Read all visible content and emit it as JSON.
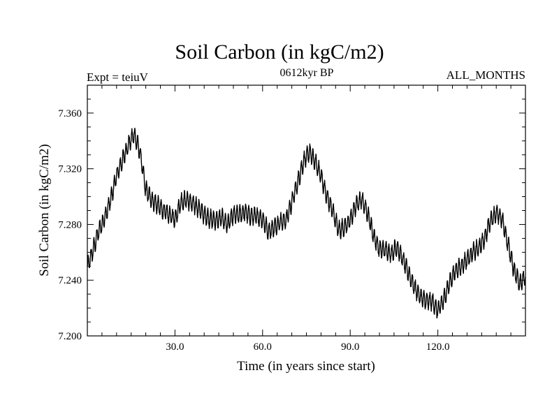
{
  "header": {
    "title": "Soil Carbon (in kgC/m2)",
    "subtitle": "0612kyr BP",
    "left_label": "Expt = teiuV",
    "right_label": "ALL_MONTHS"
  },
  "chart_data": {
    "type": "line",
    "title": "Soil Carbon (in kgC/m2)",
    "xlabel": "Time (in years since start)",
    "ylabel": "Soil Carbon (in kgC/m2)",
    "xlim": [
      0,
      150
    ],
    "ylim": [
      7.2,
      7.38
    ],
    "x_ticks": [
      30,
      60,
      90,
      120
    ],
    "x_tick_labels": [
      "30.0",
      "60.0",
      "90.0",
      "120.0"
    ],
    "y_ticks": [
      7.2,
      7.24,
      7.28,
      7.32,
      7.36
    ],
    "y_tick_labels": [
      "7.200",
      "7.240",
      "7.280",
      "7.320",
      "7.360"
    ],
    "grid": false,
    "series": [
      {
        "x": [
          0,
          2,
          4,
          6,
          8,
          10,
          12,
          14,
          16,
          18,
          20,
          22,
          24,
          26,
          28,
          30,
          32,
          34,
          36,
          38,
          40,
          42,
          44,
          46,
          48,
          50,
          52,
          54,
          56,
          58,
          60,
          62,
          64,
          66,
          68,
          70,
          72,
          74,
          76,
          78,
          80,
          82,
          84,
          86,
          88,
          90,
          92,
          94,
          96,
          98,
          100,
          102,
          104,
          106,
          108,
          110,
          112,
          114,
          116,
          118,
          120,
          122,
          124,
          126,
          128,
          130,
          132,
          134,
          136,
          138,
          140,
          142,
          144,
          146,
          148,
          150
        ],
        "y": [
          7.249,
          7.262,
          7.276,
          7.285,
          7.298,
          7.315,
          7.326,
          7.337,
          7.345,
          7.332,
          7.305,
          7.298,
          7.294,
          7.29,
          7.287,
          7.284,
          7.296,
          7.298,
          7.295,
          7.292,
          7.287,
          7.284,
          7.283,
          7.285,
          7.28,
          7.287,
          7.287,
          7.289,
          7.286,
          7.286,
          7.284,
          7.275,
          7.278,
          7.282,
          7.283,
          7.296,
          7.31,
          7.325,
          7.332,
          7.325,
          7.315,
          7.3,
          7.29,
          7.276,
          7.278,
          7.283,
          7.294,
          7.298,
          7.288,
          7.272,
          7.262,
          7.262,
          7.259,
          7.264,
          7.255,
          7.245,
          7.235,
          7.228,
          7.225,
          7.225,
          7.218,
          7.226,
          7.238,
          7.247,
          7.25,
          7.255,
          7.26,
          7.263,
          7.27,
          7.283,
          7.288,
          7.284,
          7.266,
          7.248,
          7.238,
          7.242
        ]
      }
    ]
  }
}
